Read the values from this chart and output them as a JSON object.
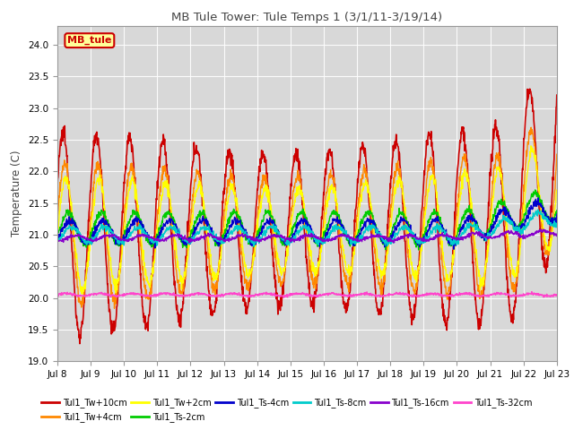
{
  "title": "MB Tule Tower: Tule Temps 1 (3/1/11-3/19/14)",
  "ylabel": "Temperature (C)",
  "ylim": [
    19.0,
    24.3
  ],
  "yticks": [
    19.0,
    19.5,
    20.0,
    20.5,
    21.0,
    21.5,
    22.0,
    22.5,
    23.0,
    23.5,
    24.0
  ],
  "x_tick_labels": [
    "Jul 8",
    "Jul 9",
    "Jul 10",
    "Jul 11",
    "Jul 12",
    "Jul 13",
    "Jul 14",
    "Jul 15",
    "Jul 16",
    "Jul 17",
    "Jul 18",
    "Jul 19",
    "Jul 20",
    "Jul 21",
    "Jul 22",
    "Jul 23"
  ],
  "legend_box_label": "MB_tule",
  "legend_box_color": "#cc0000",
  "legend_box_bg": "#ffff99",
  "series": [
    {
      "label": "Tul1_Tw+10cm",
      "color": "#cc0000",
      "lw": 1.2
    },
    {
      "label": "Tul1_Tw+4cm",
      "color": "#ff8800",
      "lw": 1.0
    },
    {
      "label": "Tul1_Tw+2cm",
      "color": "#ffff00",
      "lw": 1.0
    },
    {
      "label": "Tul1_Ts-2cm",
      "color": "#00cc00",
      "lw": 1.0
    },
    {
      "label": "Tul1_Ts-4cm",
      "color": "#0000cc",
      "lw": 1.0
    },
    {
      "label": "Tul1_Ts-8cm",
      "color": "#00cccc",
      "lw": 1.0
    },
    {
      "label": "Tul1_Ts-16cm",
      "color": "#8800cc",
      "lw": 1.0
    },
    {
      "label": "Tul1_Ts-32cm",
      "color": "#ff44cc",
      "lw": 1.0
    }
  ],
  "plot_bg": "#d8d8d8"
}
